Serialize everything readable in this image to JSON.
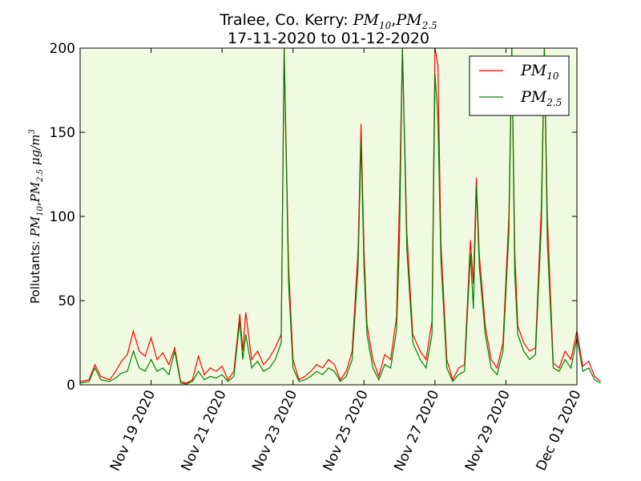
{
  "chart_data": {
    "type": "line",
    "title": {
      "line1_prefix": "Tralee, Co. Kerry: ",
      "line1_math_a": "PM",
      "line1_math_a_sub": "10",
      "line1_sep": ",",
      "line1_math_b": "PM",
      "line1_math_b_sub": "2.5",
      "line2": "17-11-2020 to 01-12-2020"
    },
    "ylabel": {
      "prefix": "Pollutants: ",
      "a": "PM",
      "a_sub": "10",
      "sep": ",",
      "b": "PM",
      "b_sub": "2.5",
      "unit": " μg/m",
      "unit_sup": "3"
    },
    "xlabel": "",
    "x_tick_labels": [
      "Nov 19 2020",
      "Nov 21 2020",
      "Nov 23 2020",
      "Nov 25 2020",
      "Nov 27 2020",
      "Nov 29 2020",
      "Dec 01 2020"
    ],
    "x_tick_dates": [
      "2020-11-19",
      "2020-11-21",
      "2020-11-23",
      "2020-11-25",
      "2020-11-27",
      "2020-11-29",
      "2020-12-01"
    ],
    "x_range": [
      "2020-11-17 00:00",
      "2020-12-01 00:00"
    ],
    "y_tick_labels": [
      "0",
      "50",
      "100",
      "150",
      "200"
    ],
    "y_ticks": [
      0,
      50,
      100,
      150,
      200
    ],
    "ylim": [
      0,
      200
    ],
    "legend_position": "top-right",
    "plot_background": "#f0fae0",
    "series": [
      {
        "name": "PM",
        "name_sub": "10",
        "color": "#ff0000",
        "points": [
          [
            "2020-11-17 00:00",
            2
          ],
          [
            "2020-11-17 06:00",
            3
          ],
          [
            "2020-11-17 10:00",
            12
          ],
          [
            "2020-11-17 14:00",
            5
          ],
          [
            "2020-11-17 20:00",
            3
          ],
          [
            "2020-11-18 00:00",
            8
          ],
          [
            "2020-11-18 04:00",
            14
          ],
          [
            "2020-11-18 08:00",
            18
          ],
          [
            "2020-11-18 12:00",
            32
          ],
          [
            "2020-11-18 16:00",
            20
          ],
          [
            "2020-11-18 20:00",
            17
          ],
          [
            "2020-11-19 00:00",
            28
          ],
          [
            "2020-11-19 04:00",
            15
          ],
          [
            "2020-11-19 08:00",
            19
          ],
          [
            "2020-11-19 12:00",
            12
          ],
          [
            "2020-11-19 16:00",
            22
          ],
          [
            "2020-11-19 20:00",
            2
          ],
          [
            "2020-11-20 00:00",
            1
          ],
          [
            "2020-11-20 04:00",
            3
          ],
          [
            "2020-11-20 08:00",
            17
          ],
          [
            "2020-11-20 12:00",
            6
          ],
          [
            "2020-11-20 16:00",
            10
          ],
          [
            "2020-11-20 20:00",
            8
          ],
          [
            "2020-11-21 00:00",
            11
          ],
          [
            "2020-11-21 04:00",
            3
          ],
          [
            "2020-11-21 08:00",
            8
          ],
          [
            "2020-11-21 12:00",
            42
          ],
          [
            "2020-11-21 14:00",
            20
          ],
          [
            "2020-11-21 16:00",
            43
          ],
          [
            "2020-11-21 20:00",
            15
          ],
          [
            "2020-11-22 00:00",
            20
          ],
          [
            "2020-11-22 04:00",
            12
          ],
          [
            "2020-11-22 08:00",
            16
          ],
          [
            "2020-11-22 12:00",
            22
          ],
          [
            "2020-11-22 16:00",
            30
          ],
          [
            "2020-11-22 18:00",
            200
          ],
          [
            "2020-11-22 21:00",
            70
          ],
          [
            "2020-11-23 00:00",
            15
          ],
          [
            "2020-11-23 04:00",
            3
          ],
          [
            "2020-11-23 08:00",
            5
          ],
          [
            "2020-11-23 12:00",
            8
          ],
          [
            "2020-11-23 16:00",
            12
          ],
          [
            "2020-11-23 20:00",
            10
          ],
          [
            "2020-11-24 00:00",
            15
          ],
          [
            "2020-11-24 04:00",
            12
          ],
          [
            "2020-11-24 08:00",
            3
          ],
          [
            "2020-11-24 12:00",
            8
          ],
          [
            "2020-11-24 16:00",
            20
          ],
          [
            "2020-11-24 20:00",
            80
          ],
          [
            "2020-11-24 22:00",
            155
          ],
          [
            "2020-11-25 00:00",
            80
          ],
          [
            "2020-11-25 02:00",
            36
          ],
          [
            "2020-11-25 06:00",
            15
          ],
          [
            "2020-11-25 10:00",
            5
          ],
          [
            "2020-11-25 14:00",
            18
          ],
          [
            "2020-11-25 18:00",
            15
          ],
          [
            "2020-11-25 22:00",
            40
          ],
          [
            "2020-11-26 00:00",
            110
          ],
          [
            "2020-11-26 02:00",
            200
          ],
          [
            "2020-11-26 05:00",
            90
          ],
          [
            "2020-11-26 09:00",
            30
          ],
          [
            "2020-11-26 14:00",
            20
          ],
          [
            "2020-11-26 18:00",
            15
          ],
          [
            "2020-11-26 22:00",
            38
          ],
          [
            "2020-11-27 00:00",
            200
          ],
          [
            "2020-11-27 02:00",
            190
          ],
          [
            "2020-11-27 04:00",
            85
          ],
          [
            "2020-11-27 08:00",
            15
          ],
          [
            "2020-11-27 12:00",
            3
          ],
          [
            "2020-11-27 16:00",
            10
          ],
          [
            "2020-11-27 20:00",
            12
          ],
          [
            "2020-11-28 00:00",
            86
          ],
          [
            "2020-11-28 02:00",
            60
          ],
          [
            "2020-11-28 04:00",
            123
          ],
          [
            "2020-11-28 06:00",
            77
          ],
          [
            "2020-11-28 10:00",
            35
          ],
          [
            "2020-11-28 14:00",
            15
          ],
          [
            "2020-11-28 18:00",
            10
          ],
          [
            "2020-11-28 22:00",
            25
          ],
          [
            "2020-11-29 02:00",
            100
          ],
          [
            "2020-11-29 04:00",
            200
          ],
          [
            "2020-11-29 06:00",
            79
          ],
          [
            "2020-11-29 08:00",
            35
          ],
          [
            "2020-11-29 12:00",
            25
          ],
          [
            "2020-11-29 16:00",
            20
          ],
          [
            "2020-11-29 20:00",
            22
          ],
          [
            "2020-11-30 00:00",
            107
          ],
          [
            "2020-11-30 02:00",
            200
          ],
          [
            "2020-11-30 04:00",
            100
          ],
          [
            "2020-11-30 08:00",
            13
          ],
          [
            "2020-11-30 12:00",
            10
          ],
          [
            "2020-11-30 16:00",
            20
          ],
          [
            "2020-11-30 20:00",
            15
          ],
          [
            "2020-12-01 00:00",
            32
          ],
          [
            "2020-12-01 04:00",
            11
          ],
          [
            "2020-12-01 08:00",
            14
          ],
          [
            "2020-12-01 12:00",
            5
          ],
          [
            "2020-12-01 16:00",
            2
          ]
        ]
      },
      {
        "name": "PM",
        "name_sub": "2.5",
        "color": "#008000",
        "points": [
          [
            "2020-11-17 00:00",
            1
          ],
          [
            "2020-11-17 06:00",
            2
          ],
          [
            "2020-11-17 10:00",
            10
          ],
          [
            "2020-11-17 14:00",
            3
          ],
          [
            "2020-11-17 20:00",
            2
          ],
          [
            "2020-11-18 00:00",
            4
          ],
          [
            "2020-11-18 04:00",
            7
          ],
          [
            "2020-11-18 08:00",
            8
          ],
          [
            "2020-11-18 12:00",
            20
          ],
          [
            "2020-11-18 16:00",
            10
          ],
          [
            "2020-11-18 20:00",
            8
          ],
          [
            "2020-11-19 00:00",
            15
          ],
          [
            "2020-11-19 04:00",
            8
          ],
          [
            "2020-11-19 08:00",
            10
          ],
          [
            "2020-11-19 12:00",
            6
          ],
          [
            "2020-11-19 16:00",
            20
          ],
          [
            "2020-11-19 20:00",
            1
          ],
          [
            "2020-11-20 00:00",
            0.5
          ],
          [
            "2020-11-20 04:00",
            2
          ],
          [
            "2020-11-20 08:00",
            8
          ],
          [
            "2020-11-20 12:00",
            3
          ],
          [
            "2020-11-20 16:00",
            5
          ],
          [
            "2020-11-20 20:00",
            4
          ],
          [
            "2020-11-21 00:00",
            6
          ],
          [
            "2020-11-21 04:00",
            2
          ],
          [
            "2020-11-21 08:00",
            5
          ],
          [
            "2020-11-21 12:00",
            38
          ],
          [
            "2020-11-21 14:00",
            15
          ],
          [
            "2020-11-21 16:00",
            30
          ],
          [
            "2020-11-21 20:00",
            10
          ],
          [
            "2020-11-22 00:00",
            14
          ],
          [
            "2020-11-22 04:00",
            8
          ],
          [
            "2020-11-22 08:00",
            10
          ],
          [
            "2020-11-22 12:00",
            15
          ],
          [
            "2020-11-22 16:00",
            25
          ],
          [
            "2020-11-22 18:00",
            200
          ],
          [
            "2020-11-22 21:00",
            60
          ],
          [
            "2020-11-23 00:00",
            10
          ],
          [
            "2020-11-23 04:00",
            2
          ],
          [
            "2020-11-23 08:00",
            3
          ],
          [
            "2020-11-23 12:00",
            5
          ],
          [
            "2020-11-23 16:00",
            8
          ],
          [
            "2020-11-23 20:00",
            6
          ],
          [
            "2020-11-24 00:00",
            10
          ],
          [
            "2020-11-24 04:00",
            8
          ],
          [
            "2020-11-24 08:00",
            2
          ],
          [
            "2020-11-24 12:00",
            5
          ],
          [
            "2020-11-24 16:00",
            15
          ],
          [
            "2020-11-24 20:00",
            70
          ],
          [
            "2020-11-24 22:00",
            145
          ],
          [
            "2020-11-25 00:00",
            70
          ],
          [
            "2020-11-25 02:00",
            30
          ],
          [
            "2020-11-25 06:00",
            10
          ],
          [
            "2020-11-25 10:00",
            3
          ],
          [
            "2020-11-25 14:00",
            12
          ],
          [
            "2020-11-25 18:00",
            10
          ],
          [
            "2020-11-25 22:00",
            32
          ],
          [
            "2020-11-26 00:00",
            85
          ],
          [
            "2020-11-26 02:00",
            200
          ],
          [
            "2020-11-26 05:00",
            80
          ],
          [
            "2020-11-26 09:00",
            25
          ],
          [
            "2020-11-26 14:00",
            15
          ],
          [
            "2020-11-26 18:00",
            10
          ],
          [
            "2020-11-26 22:00",
            30
          ],
          [
            "2020-11-27 00:00",
            185
          ],
          [
            "2020-11-27 02:00",
            158
          ],
          [
            "2020-11-27 04:00",
            75
          ],
          [
            "2020-11-27 08:00",
            10
          ],
          [
            "2020-11-27 12:00",
            2
          ],
          [
            "2020-11-27 16:00",
            6
          ],
          [
            "2020-11-27 20:00",
            8
          ],
          [
            "2020-11-28 00:00",
            78
          ],
          [
            "2020-11-28 02:00",
            45
          ],
          [
            "2020-11-28 04:00",
            118
          ],
          [
            "2020-11-28 06:00",
            70
          ],
          [
            "2020-11-28 10:00",
            30
          ],
          [
            "2020-11-28 14:00",
            10
          ],
          [
            "2020-11-28 18:00",
            6
          ],
          [
            "2020-11-28 22:00",
            20
          ],
          [
            "2020-11-29 02:00",
            90
          ],
          [
            "2020-11-29 04:00",
            200
          ],
          [
            "2020-11-29 06:00",
            65
          ],
          [
            "2020-11-29 08:00",
            30
          ],
          [
            "2020-11-29 12:00",
            20
          ],
          [
            "2020-11-29 16:00",
            15
          ],
          [
            "2020-11-29 20:00",
            18
          ],
          [
            "2020-11-30 00:00",
            95
          ],
          [
            "2020-11-30 02:00",
            200
          ],
          [
            "2020-11-30 04:00",
            85
          ],
          [
            "2020-11-30 08:00",
            10
          ],
          [
            "2020-11-30 12:00",
            8
          ],
          [
            "2020-11-30 16:00",
            15
          ],
          [
            "2020-11-30 20:00",
            10
          ],
          [
            "2020-12-01 00:00",
            28
          ],
          [
            "2020-12-01 04:00",
            8
          ],
          [
            "2020-12-01 08:00",
            10
          ],
          [
            "2020-12-01 12:00",
            3
          ],
          [
            "2020-12-01 16:00",
            1
          ]
        ]
      }
    ]
  }
}
